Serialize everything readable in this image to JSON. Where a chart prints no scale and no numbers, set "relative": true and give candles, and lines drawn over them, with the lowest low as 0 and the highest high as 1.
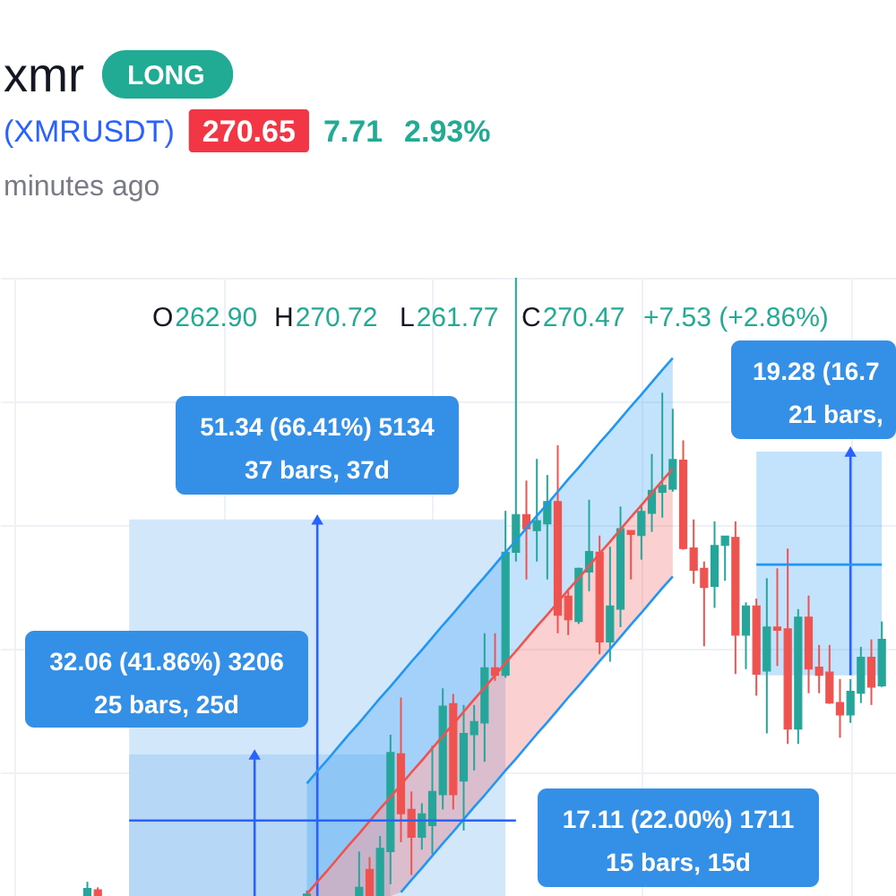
{
  "chart_data": {
    "type": "candlestick",
    "title": "xmr",
    "relative": true,
    "grid": true,
    "tick_labels": false,
    "annotations": [
      "LONG",
      "(XMRUSDT)",
      "270.65",
      "7.71",
      "2.93%",
      "minutes ago",
      "O",
      "262.90",
      "H",
      "270.72",
      "L",
      "261.77",
      "C",
      "270.47",
      "+7.53 (+2.86%)",
      "51.34 (66.41%) 5134",
      "37 bars, 37d",
      "32.06 (41.86%) 3206",
      "25 bars, 25d",
      "17.11 (22.00%) 1711",
      "15 bars, 15d",
      "19.28 (16.7",
      "21 bars,"
    ],
    "categories": [
      null,
      null,
      null,
      null,
      null,
      null,
      null,
      null,
      null,
      null,
      null,
      null,
      null,
      null,
      null,
      null,
      null,
      null,
      null,
      null,
      null,
      null,
      null,
      null,
      null,
      null,
      null,
      null,
      null,
      null,
      null,
      null,
      null,
      null,
      null,
      null,
      null,
      null,
      null,
      null,
      null,
      null,
      null,
      null,
      null,
      null,
      null,
      null,
      null,
      null,
      null,
      null,
      null,
      null,
      null,
      null,
      null,
      null,
      null,
      null,
      null,
      null,
      null,
      null,
      null,
      null,
      null,
      null,
      null,
      null,
      null,
      null,
      null,
      null,
      null,
      null,
      null,
      null,
      null,
      null,
      null,
      null,
      null,
      null
    ],
    "ohlc": [
      null,
      null,
      null,
      null,
      null,
      null,
      null,
      [
        0,
        0.023,
        0,
        0.012
      ],
      [
        0.01,
        0.014,
        0,
        0
      ],
      null,
      null,
      null,
      null,
      null,
      null,
      null,
      null,
      null,
      null,
      null,
      null,
      null,
      null,
      null,
      null,
      null,
      null,
      null,
      [
        0,
        0.009,
        0,
        0.003
      ],
      null,
      null,
      null,
      null,
      [
        0,
        0.072,
        0,
        0.014
      ],
      [
        0.043,
        0.063,
        0,
        0
      ],
      [
        0,
        0.097,
        0,
        0.077
      ],
      [
        0.072,
        0.261,
        0.019,
        0.232
      ],
      [
        0.23,
        0.321,
        0.087,
        0.133
      ],
      [
        0.14,
        0.169,
        0.034,
        0.095
      ],
      [
        0.095,
        0.15,
        0.075,
        0.133
      ],
      [
        0.114,
        0.243,
        0.068,
        0.169
      ],
      [
        0.164,
        0.336,
        0.14,
        0.307
      ],
      [
        0.311,
        0.327,
        0.14,
        0.164
      ],
      [
        0.186,
        0.309,
        0.106,
        0.263
      ],
      [
        0.261,
        0.309,
        0.203,
        0.282
      ],
      [
        0.28,
        0.425,
        0.217,
        0.369
      ],
      [
        0.369,
        0.425,
        0.348,
        0.357
      ],
      [
        0.357,
        0.623,
        0.353,
        0.556
      ],
      [
        0.556,
        1.0,
        0.541,
        0.617
      ],
      [
        0.617,
        0.672,
        0.512,
        0.594
      ],
      [
        0.591,
        0.707,
        0.541,
        0.607
      ],
      [
        0.602,
        0.681,
        0.512,
        0.638
      ],
      [
        0.638,
        0.729,
        0.425,
        0.454
      ],
      [
        0.485,
        0.493,
        0.422,
        0.447
      ],
      [
        0.444,
        0.531,
        0.44,
        0.53
      ],
      [
        0.524,
        0.641,
        0.493,
        0.557
      ],
      [
        0.556,
        0.583,
        0.391,
        0.411
      ],
      [
        0.411,
        0.565,
        0.379,
        0.469
      ],
      [
        0.464,
        0.63,
        0.435,
        0.594
      ],
      [
        0.591,
        0.591,
        0.512,
        0.585
      ],
      [
        0.583,
        0.632,
        0.544,
        0.622
      ],
      [
        0.619,
        0.715,
        0.589,
        0.656
      ],
      [
        0.653,
        0.814,
        0.612,
        0.664
      ],
      [
        0.658,
        0.788,
        0.654,
        0.706
      ],
      [
        0.705,
        0.737,
        0.56,
        0.562
      ],
      [
        0.563,
        0.609,
        0.505,
        0.527
      ],
      [
        0.53,
        0.541,
        0.404,
        0.499
      ],
      [
        0.501,
        0.606,
        0.466,
        0.567
      ],
      [
        0.567,
        0.582,
        0.51,
        0.582
      ],
      [
        0.58,
        0.606,
        0.359,
        0.422
      ],
      [
        0.422,
        0.475,
        0.367,
        0.469
      ],
      [
        0.469,
        0.481,
        0.324,
        0.359
      ],
      [
        0.364,
        0.514,
        0.263,
        0.435
      ],
      [
        0.435,
        0.53,
        0.372,
        0.43
      ],
      [
        0.432,
        0.562,
        0.246,
        0.27
      ],
      [
        0.27,
        0.464,
        0.246,
        0.451
      ],
      [
        0.451,
        0.486,
        0.328,
        0.367
      ],
      [
        0.37,
        0.406,
        0.328,
        0.357
      ],
      [
        0.362,
        0.406,
        0.311,
        0.312
      ],
      [
        0.313,
        0.351,
        0.256,
        0.293
      ],
      [
        0.293,
        0.351,
        0.28,
        0.331
      ],
      [
        0.328,
        0.403,
        0.312,
        0.386
      ],
      [
        0.386,
        0.415,
        0.309,
        0.338
      ],
      [
        0.34,
        0.444,
        0.338,
        0.415
      ]
    ],
    "colors": [
      null,
      null,
      null,
      null,
      null,
      null,
      null,
      "#26a69a",
      "#ef5350",
      null,
      null,
      null,
      null,
      null,
      null,
      null,
      null,
      null,
      null,
      null,
      null,
      null,
      null,
      null,
      null,
      null,
      null,
      null,
      "#26a69a",
      null,
      null,
      null,
      null,
      "#26a69a",
      "#ef5350",
      "#26a69a",
      "#26a69a",
      "#ef5350",
      "#ef5350",
      "#26a69a",
      "#26a69a",
      "#26a69a",
      "#ef5350",
      "#26a69a",
      "#26a69a",
      "#26a69a",
      "#ef5350",
      "#26a69a",
      "#26a69a",
      "#ef5350",
      "#26a69a",
      "#26a69a",
      "#ef5350",
      "#ef5350",
      "#26a69a",
      "#26a69a",
      "#ef5350",
      "#26a69a",
      "#26a69a",
      "#ef5350",
      "#26a69a",
      "#26a69a",
      "#26a69a",
      "#26a69a",
      "#ef5350",
      "#ef5350",
      "#ef5350",
      "#26a69a",
      "#26a69a",
      "#ef5350",
      "#26a69a",
      "#ef5350",
      "#26a69a",
      "#ef5350",
      "#ef5350",
      "#26a69a",
      "#ef5350",
      "#ef5350",
      "#ef5350",
      "#ef5350",
      "#26a69a",
      "#26a69a",
      "#ef5350",
      "#26a69a"
    ],
    "series": [
      {
        "type": "area",
        "color": "#d3e7fb",
        "values": [
          null,
          null,
          null,
          null,
          null,
          null,
          null,
          null,
          null,
          null,
          null,
          0.609,
          0.609,
          0.609,
          0.609,
          0.609,
          0.609,
          0.609,
          0.609,
          0.609,
          0.609,
          0.609,
          0.609,
          0.609,
          0.609,
          0.609,
          0.609,
          0.609,
          0.609,
          0.609,
          0.609,
          0.609,
          0.609,
          0.609,
          0.609,
          0.609,
          0.609,
          0.609,
          0.609,
          0.609,
          0.609,
          0.609,
          0.609,
          0.609,
          0.609,
          0.609,
          0.609,
          0.609,
          null,
          null,
          null,
          null,
          null,
          null,
          null,
          null,
          null,
          null,
          null,
          null,
          null,
          null,
          null,
          null,
          null,
          null,
          null,
          null,
          null,
          null,
          null,
          null,
          null,
          null,
          null,
          null,
          null,
          null,
          null,
          null,
          null,
          null,
          null,
          null
        ]
      },
      {
        "type": "area",
        "color": "#b7d7f7",
        "values": [
          null,
          null,
          null,
          null,
          null,
          null,
          null,
          null,
          null,
          null,
          null,
          0.229,
          0.229,
          0.229,
          0.229,
          0.229,
          0.229,
          0.229,
          0.229,
          0.229,
          0.229,
          0.229,
          0.229,
          0.229,
          0.229,
          0.229,
          0.229,
          0.229,
          0.229,
          0.229,
          0.229,
          0.229,
          0.229,
          0.229,
          0.229,
          0.229,
          0.229,
          null,
          null,
          null,
          null,
          null,
          null,
          null,
          null,
          null,
          null,
          null,
          null,
          null,
          null,
          null,
          null,
          null,
          null,
          null,
          null,
          null,
          null,
          null,
          null,
          null,
          null,
          null,
          null,
          null,
          null,
          null,
          null,
          null,
          null,
          null,
          null,
          null,
          null,
          null,
          null,
          null,
          null,
          null,
          null,
          null,
          null,
          null
        ]
      },
      {
        "type": "line",
        "color": "#2196f3",
        "values": [
          null,
          null,
          null,
          null,
          null,
          null,
          null,
          null,
          null,
          null,
          null,
          null,
          null,
          null,
          null,
          null,
          null,
          null,
          null,
          null,
          null,
          null,
          null,
          null,
          null,
          null,
          null,
          null,
          null,
          null,
          null,
          null,
          null,
          null,
          null,
          null,
          null,
          null,
          null,
          null,
          null,
          null,
          null,
          null,
          null,
          null,
          null,
          null,
          null,
          null,
          null,
          null,
          null,
          null,
          null,
          null,
          null,
          null,
          null,
          null,
          null,
          null,
          null,
          null,
          null,
          null,
          null,
          null,
          null,
          null,
          null,
          0.536,
          0.536,
          0.536,
          0.536,
          0.536,
          0.536,
          0.536,
          0.536,
          0.536,
          0.536,
          0.536,
          0.536,
          0.536
        ],
        "lower": [
          null,
          null,
          null,
          null,
          null,
          null,
          null,
          null,
          null,
          null,
          null,
          null,
          null,
          null,
          null,
          null,
          null,
          null,
          null,
          null,
          null,
          null,
          null,
          null,
          null,
          null,
          null,
          null,
          null,
          null,
          null,
          null,
          null,
          null,
          null,
          null,
          null,
          null,
          null,
          null,
          null,
          null,
          null,
          null,
          null,
          null,
          null,
          null,
          null,
          null,
          null,
          null,
          null,
          null,
          null,
          null,
          null,
          null,
          null,
          null,
          null,
          null,
          null,
          null,
          null,
          null,
          null,
          null,
          null,
          null,
          null,
          0.357,
          0.357,
          0.357,
          0.357,
          0.357,
          0.357,
          0.357,
          0.357,
          0.357,
          0.357,
          0.357,
          0.357,
          0.357
        ],
        "upper": [
          null,
          null,
          null,
          null,
          null,
          null,
          null,
          null,
          null,
          null,
          null,
          null,
          null,
          null,
          null,
          null,
          null,
          null,
          null,
          null,
          null,
          null,
          null,
          null,
          null,
          null,
          null,
          null,
          null,
          null,
          null,
          null,
          null,
          null,
          null,
          null,
          null,
          null,
          null,
          null,
          null,
          null,
          null,
          null,
          null,
          null,
          null,
          null,
          null,
          null,
          null,
          null,
          null,
          null,
          null,
          null,
          null,
          null,
          null,
          null,
          null,
          null,
          null,
          null,
          null,
          null,
          null,
          null,
          null,
          null,
          null,
          0.719,
          0.719,
          0.719,
          0.719,
          0.719,
          0.719,
          0.719,
          0.719,
          0.719,
          0.719,
          0.719,
          0.719,
          0.719
        ]
      },
      {
        "type": "line",
        "color": "#2196f3",
        "values": [
          null,
          null,
          null,
          null,
          null,
          null,
          null,
          null,
          null,
          null,
          null,
          null,
          null,
          null,
          null,
          null,
          null,
          null,
          null,
          null,
          null,
          null,
          null,
          null,
          null,
          null,
          null,
          null,
          0.182,
          0.202,
          0.221,
          0.241,
          0.261,
          0.28,
          0.3,
          0.32,
          0.339,
          0.359,
          0.379,
          0.398,
          0.418,
          0.438,
          0.457,
          0.477,
          0.497,
          0.516,
          0.536,
          0.556,
          0.575,
          0.595,
          0.615,
          0.634,
          0.654,
          0.674,
          0.693,
          0.713,
          0.733,
          0.752,
          0.772,
          0.792,
          0.811,
          0.831,
          0.851,
          0.87,
          null,
          null,
          null,
          null,
          null,
          null,
          null,
          null,
          null,
          null,
          null,
          null,
          null,
          null,
          null,
          null,
          null,
          null,
          null,
          null
        ],
        "lower": [
          null,
          null,
          null,
          null,
          null,
          null,
          null,
          null,
          null,
          null,
          null,
          null,
          null,
          null,
          null,
          null,
          null,
          null,
          null,
          null,
          null,
          null,
          null,
          null,
          null,
          null,
          null,
          null,
          0.003,
          0.023,
          0.042,
          0.062,
          0.082,
          0.101,
          0.121,
          0.141,
          0.16,
          0.18,
          0.2,
          0.219,
          0.239,
          0.259,
          0.278,
          0.298,
          0.318,
          0.337,
          0.357,
          0.377,
          0.396,
          0.416,
          0.436,
          0.455,
          0.475,
          0.495,
          0.514,
          0.534,
          0.554,
          0.573,
          0.593,
          0.613,
          0.632,
          0.652,
          0.672,
          0.691,
          null,
          null,
          null,
          null,
          null,
          null,
          null,
          null,
          null,
          null,
          null,
          null,
          null,
          null,
          null,
          null,
          null,
          null,
          null,
          null
        ],
        "upper": [
          null,
          null,
          null,
          null,
          null,
          null,
          null,
          null,
          null,
          null,
          null,
          null,
          null,
          null,
          null,
          null,
          null,
          null,
          null,
          null,
          null,
          null,
          null,
          null,
          null,
          null,
          null,
          null,
          0.182,
          0.202,
          0.221,
          0.241,
          0.261,
          0.28,
          0.3,
          0.32,
          0.339,
          0.359,
          0.379,
          0.398,
          0.418,
          0.438,
          0.457,
          0.477,
          0.497,
          0.516,
          0.536,
          0.556,
          0.575,
          0.595,
          0.615,
          0.634,
          0.654,
          0.674,
          0.693,
          0.713,
          0.733,
          0.752,
          0.772,
          0.792,
          0.811,
          0.831,
          0.851,
          0.87,
          null,
          null,
          null,
          null,
          null,
          null,
          null,
          null,
          null,
          null,
          null,
          null,
          null,
          null,
          null,
          null,
          null,
          null,
          null,
          null
        ]
      },
      {
        "type": "line",
        "color": "#ef5350",
        "values": [
          null,
          null,
          null,
          null,
          null,
          null,
          null,
          null,
          null,
          null,
          null,
          null,
          null,
          null,
          null,
          null,
          null,
          null,
          null,
          null,
          null,
          null,
          null,
          null,
          null,
          null,
          null,
          null,
          0.003,
          0.023,
          0.042,
          0.062,
          0.082,
          0.101,
          0.121,
          0.141,
          0.16,
          0.18,
          0.2,
          0.219,
          0.239,
          0.259,
          0.278,
          0.298,
          0.318,
          0.337,
          0.357,
          0.377,
          0.396,
          0.416,
          0.436,
          0.455,
          0.475,
          0.495,
          0.514,
          0.534,
          0.554,
          0.573,
          0.593,
          0.613,
          0.632,
          0.652,
          0.672,
          0.691,
          null,
          null,
          null,
          null,
          null,
          null,
          null,
          null,
          null,
          null,
          null,
          null,
          null,
          null,
          null,
          null,
          null,
          null,
          null,
          null
        ],
        "lower": [
          null,
          null,
          null,
          null,
          null,
          null,
          null,
          null,
          null,
          null,
          null,
          null,
          null,
          null,
          null,
          null,
          null,
          null,
          null,
          null,
          null,
          null,
          null,
          null,
          null,
          null,
          null,
          null,
          0,
          0,
          0,
          0,
          0,
          0,
          0,
          0,
          0,
          0.006,
          0.026,
          0.045,
          0.065,
          0.085,
          0.104,
          0.124,
          0.144,
          0.163,
          0.183,
          0.203,
          0.222,
          0.242,
          0.262,
          0.281,
          0.301,
          0.321,
          0.34,
          0.36,
          0.38,
          0.399,
          0.419,
          0.439,
          0.458,
          0.478,
          0.498,
          0.517,
          null,
          null,
          null,
          null,
          null,
          null,
          null,
          null,
          null,
          null,
          null,
          null,
          null,
          null,
          null,
          null,
          null,
          null,
          null,
          null
        ],
        "upper": [
          null,
          null,
          null,
          null,
          null,
          null,
          null,
          null,
          null,
          null,
          null,
          null,
          null,
          null,
          null,
          null,
          null,
          null,
          null,
          null,
          null,
          null,
          null,
          null,
          null,
          null,
          null,
          null,
          0.003,
          0.023,
          0.042,
          0.062,
          0.082,
          0.101,
          0.121,
          0.141,
          0.16,
          0.18,
          0.2,
          0.219,
          0.239,
          0.259,
          0.278,
          0.298,
          0.318,
          0.337,
          0.357,
          0.377,
          0.396,
          0.416,
          0.436,
          0.455,
          0.475,
          0.495,
          0.514,
          0.534,
          0.554,
          0.573,
          0.593,
          0.613,
          0.632,
          0.652,
          0.672,
          0.691,
          null,
          null,
          null,
          null,
          null,
          null,
          null,
          null,
          null,
          null,
          null,
          null,
          null,
          null,
          null,
          null,
          null,
          null,
          null,
          null
        ]
      },
      {
        "type": "line",
        "color": "#2196f3",
        "values": [
          null,
          null,
          null,
          null,
          null,
          null,
          null,
          null,
          null,
          null,
          null,
          null,
          null,
          null,
          null,
          null,
          null,
          null,
          null,
          null,
          null,
          null,
          null,
          null,
          null,
          null,
          null,
          null,
          null,
          null,
          null,
          null,
          null,
          null,
          null,
          null,
          null,
          0.006,
          0.026,
          0.045,
          0.065,
          0.085,
          0.104,
          0.124,
          0.144,
          0.163,
          0.183,
          0.203,
          0.222,
          0.242,
          0.262,
          0.281,
          0.301,
          0.321,
          0.34,
          0.36,
          0.38,
          0.399,
          0.419,
          0.439,
          0.458,
          0.478,
          0.498,
          0.517,
          null,
          null,
          null,
          null,
          null,
          null,
          null,
          null,
          null,
          null,
          null,
          null,
          null,
          null,
          null,
          null,
          null,
          null,
          null,
          null
        ]
      },
      {
        "type": "scatter",
        "color": "#2962ff",
        "marker": "triangle",
        "values": [
          null,
          null,
          null,
          null,
          null,
          null,
          null,
          null,
          null,
          null,
          null,
          null,
          null,
          null,
          null,
          null,
          null,
          null,
          null,
          null,
          null,
          null,
          null,
          0.229,
          null,
          null,
          null,
          null,
          null,
          0.609,
          null,
          null,
          null,
          null,
          null,
          null,
          null,
          null,
          null,
          null,
          null,
          null,
          null,
          null,
          null,
          null,
          null,
          null,
          null,
          null,
          null,
          null,
          null,
          null,
          null,
          null,
          null,
          null,
          null,
          null,
          null,
          null,
          null,
          null,
          null,
          null,
          null,
          null,
          null,
          null,
          null,
          null,
          null,
          null,
          null,
          null,
          null,
          null,
          null,
          null,
          0.719,
          null,
          null,
          null
        ],
        "errors": [
          null,
          null,
          null,
          null,
          null,
          null,
          null,
          null,
          null,
          null,
          null,
          null,
          null,
          null,
          null,
          null,
          null,
          null,
          null,
          null,
          null,
          null,
          null,
          [
            0,
            0.229
          ],
          null,
          null,
          null,
          null,
          null,
          [
            0,
            0.609
          ],
          null,
          null,
          null,
          null,
          null,
          null,
          null,
          null,
          null,
          null,
          null,
          null,
          null,
          null,
          null,
          null,
          null,
          null,
          null,
          null,
          null,
          null,
          null,
          null,
          null,
          null,
          null,
          null,
          null,
          null,
          null,
          null,
          null,
          null,
          null,
          null,
          null,
          null,
          null,
          null,
          null,
          null,
          null,
          null,
          null,
          null,
          null,
          null,
          null,
          null,
          [
            0.357,
            0.719
          ],
          null,
          null,
          null
        ]
      },
      {
        "type": "line",
        "color": "#2962ff",
        "values": [
          null,
          null,
          null,
          null,
          null,
          null,
          null,
          null,
          null,
          null,
          null,
          0.122,
          0.122,
          0.122,
          0.122,
          0.122,
          0.122,
          0.122,
          0.122,
          0.122,
          0.122,
          0.122,
          0.122,
          0.122,
          0.122,
          0.122,
          0.122,
          0.122,
          0.122,
          0.122,
          0.122,
          0.122,
          0.122,
          0.122,
          0.122,
          0.122,
          0.122,
          0.122,
          0.122,
          0.122,
          0.122,
          0.122,
          0.122,
          0.122,
          0.122,
          0.122,
          0.122,
          0.122,
          0.122,
          null,
          null,
          null,
          null,
          null,
          null,
          null,
          null,
          null,
          null,
          null,
          null,
          null,
          null,
          null,
          null,
          null,
          null,
          null,
          null,
          null,
          null,
          null,
          null,
          null,
          null,
          null,
          null,
          null,
          null,
          null,
          null,
          null,
          null,
          null
        ]
      }
    ]
  }
}
